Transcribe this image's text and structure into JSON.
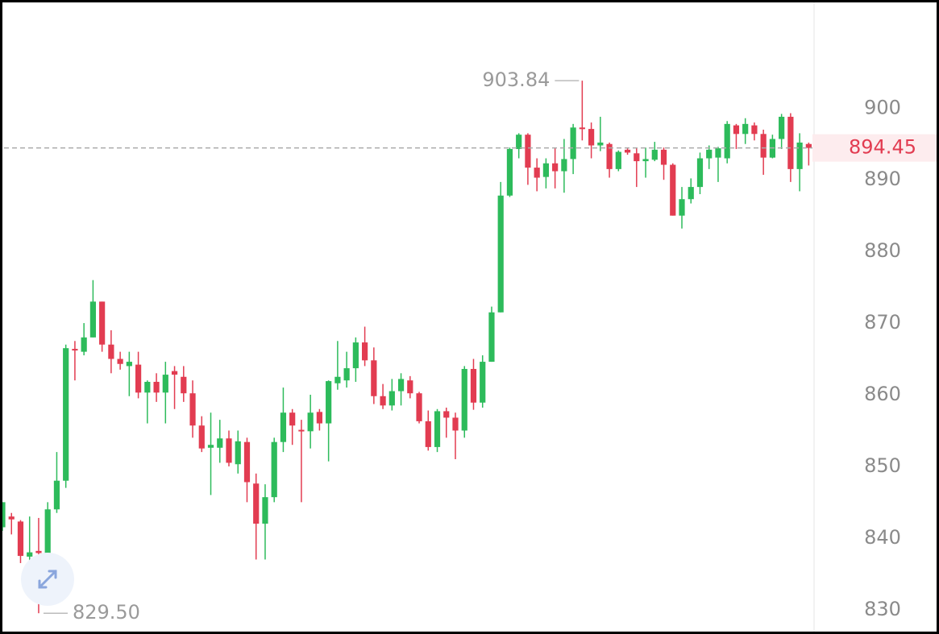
{
  "chart_data": {
    "type": "candlestick",
    "series": [
      {
        "up_color": "#2dbb5b",
        "down_color": "#e23c51",
        "open": [
          841.5,
          843,
          842.3,
          837.4,
          838.2,
          837.6,
          844,
          848,
          866.4,
          866,
          868,
          873,
          867,
          865,
          864,
          864.2,
          860.3,
          861.8,
          860.3,
          863.3,
          862.5,
          860.2,
          855.7,
          852.6,
          852.6,
          853.9,
          850.3,
          853.4,
          847.6,
          842,
          845.7,
          853.4,
          857.5,
          855.1,
          854.9,
          857.6,
          856,
          861.6,
          862,
          863.7,
          867.3,
          864.8,
          859.8,
          858.5,
          860.5,
          862,
          860.2,
          856.3,
          852.7,
          857.7,
          856.8,
          855,
          863.6,
          858.9,
          864.6,
          871.5,
          887.8,
          894.3,
          896.3,
          891.7,
          890.4,
          892.3,
          891.2,
          892.9,
          897.3,
          897.1,
          894.8,
          895,
          891.5,
          894.2,
          893.7,
          892.6,
          892.8,
          894.2,
          892.1,
          885,
          887.3,
          889,
          893,
          893.1,
          893,
          897.6,
          896.4,
          897.6,
          896.4,
          893.1,
          895.7,
          898.8,
          891.5,
          895
        ],
        "high": [
          845,
          843.5,
          842.5,
          843,
          842.8,
          845,
          852,
          867,
          867.5,
          870,
          876,
          873,
          869,
          866,
          866,
          866,
          862,
          863,
          864.6,
          864,
          864,
          862,
          857,
          857.5,
          856.5,
          855,
          855,
          854,
          849,
          847.5,
          854,
          861,
          858,
          856.5,
          860,
          858,
          862,
          867.5,
          866,
          868,
          869.5,
          866.6,
          861.5,
          862.2,
          863,
          862.6,
          860.4,
          857.8,
          858,
          858.2,
          857.5,
          864,
          865,
          865.5,
          872.3,
          889.7,
          894.5,
          896.5,
          896.5,
          893,
          893,
          894.5,
          895.7,
          897.8,
          903.84,
          898,
          898.8,
          895.2,
          894.1,
          894.5,
          894.5,
          894.5,
          895.3,
          894.5,
          892.3,
          889,
          890.2,
          893.8,
          894.8,
          894.6,
          898.2,
          897.8,
          898.6,
          898,
          897,
          896.3,
          899.2,
          899.3,
          896.5,
          895.2
        ],
        "low": [
          841,
          840.5,
          836.5,
          836.8,
          829.5,
          836,
          843.5,
          847,
          862,
          865.5,
          868,
          866,
          863,
          863.5,
          859.8,
          859.5,
          856,
          859,
          856,
          858,
          859,
          854,
          852,
          846,
          850.5,
          850,
          849,
          845,
          837,
          837,
          845,
          852,
          853,
          845,
          852.5,
          855,
          850.7,
          860.7,
          861,
          861.8,
          864,
          858.7,
          858,
          857.8,
          858.5,
          859.5,
          856,
          852.2,
          852,
          854,
          851,
          854,
          857.9,
          858.2,
          864.6,
          871.5,
          887.6,
          893,
          889.3,
          888.4,
          888.8,
          888.8,
          888.2,
          890.8,
          895.5,
          893,
          894,
          890.3,
          891.2,
          893.5,
          889,
          890.3,
          892.6,
          890,
          885,
          883.2,
          886.7,
          888,
          891.5,
          889.7,
          892.3,
          894.3,
          895,
          895.5,
          890.7,
          893,
          894.3,
          889.7,
          888.4,
          892
        ],
        "close": [
          845,
          842.6,
          837.5,
          838,
          837.9,
          844,
          848,
          866.5,
          866.2,
          868,
          873,
          867,
          865,
          864.3,
          864.6,
          860.3,
          861.8,
          860.3,
          862.8,
          862.8,
          860.2,
          855.7,
          852.5,
          853,
          853.9,
          850.5,
          853.5,
          847.8,
          842,
          845.7,
          853.4,
          857.5,
          855.7,
          854.9,
          857.5,
          856,
          861.9,
          862.5,
          863.7,
          867.3,
          864.8,
          859.8,
          858.5,
          860.5,
          862.2,
          860.2,
          856.3,
          852.7,
          857.7,
          856.8,
          855,
          863.6,
          858.9,
          864.6,
          871.5,
          887.8,
          894.3,
          896.3,
          891.7,
          890.3,
          892.3,
          891.2,
          892.9,
          897.3,
          897.1,
          894.8,
          895.2,
          891.5,
          893.9,
          893.8,
          892.6,
          892.9,
          894.2,
          892.1,
          885,
          887.3,
          889,
          893,
          894.2,
          894.4,
          897.8,
          896.4,
          897.8,
          896.4,
          893.1,
          895.7,
          898.8,
          891.5,
          895.2,
          894.45
        ]
      }
    ],
    "ylim": [
      826.6,
      915.1
    ],
    "yticks": [
      830,
      840,
      850,
      860,
      870,
      880,
      890,
      900
    ],
    "last_price": 894.45,
    "annotations": [
      {
        "value": 903.84,
        "label": "903.84"
      },
      {
        "value": 829.5,
        "label": "829.50"
      }
    ]
  }
}
